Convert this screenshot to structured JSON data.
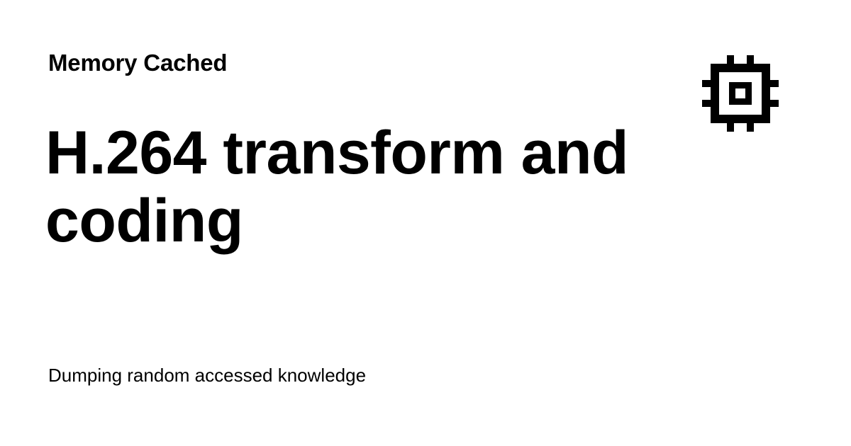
{
  "site": {
    "name": "Memory Cached",
    "logo_icon": "cpu-chip-icon"
  },
  "post": {
    "title": "H.264 transform and coding"
  },
  "site_tagline": "Dumping random accessed knowledge",
  "colors": {
    "background": "#ffffff",
    "text": "#000000"
  }
}
